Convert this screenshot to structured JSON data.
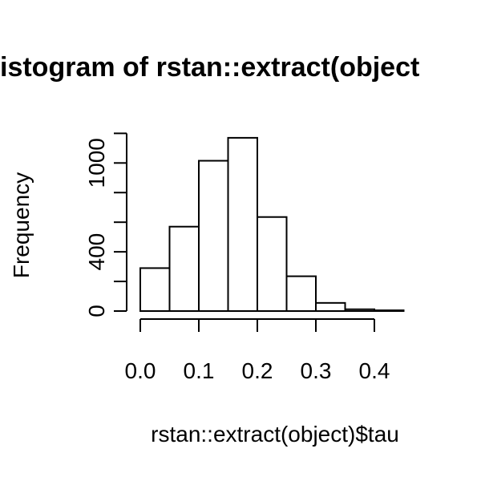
{
  "chart_data": {
    "type": "bar",
    "title": "istogram of rstan::extract(object",
    "xlabel": "rstan::extract(object)$tau",
    "ylabel": "Frequency",
    "bins": [
      {
        "x0": 0.0,
        "x1": 0.05,
        "count": 290
      },
      {
        "x0": 0.05,
        "x1": 0.1,
        "count": 570
      },
      {
        "x0": 0.1,
        "x1": 0.15,
        "count": 1015
      },
      {
        "x0": 0.15,
        "x1": 0.2,
        "count": 1170
      },
      {
        "x0": 0.2,
        "x1": 0.25,
        "count": 635
      },
      {
        "x0": 0.25,
        "x1": 0.3,
        "count": 235
      },
      {
        "x0": 0.3,
        "x1": 0.35,
        "count": 55
      },
      {
        "x0": 0.35,
        "x1": 0.4,
        "count": 12
      },
      {
        "x0": 0.4,
        "x1": 0.45,
        "count": 5
      }
    ],
    "xticks": [
      0.0,
      0.1,
      0.2,
      0.3,
      0.4
    ],
    "xtick_labels": [
      "0.0",
      "0.1",
      "0.2",
      "0.3",
      "0.4"
    ],
    "yticks": [
      0,
      200,
      400,
      600,
      800,
      1000,
      1200
    ],
    "ytick_labels": [
      "0",
      "",
      "400",
      "",
      "",
      "1000",
      ""
    ],
    "xlim": [
      0.0,
      0.45
    ],
    "ylim": [
      0,
      1200
    ],
    "grid": false,
    "legend": "none"
  }
}
